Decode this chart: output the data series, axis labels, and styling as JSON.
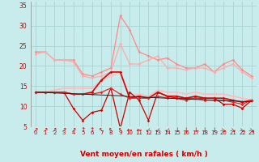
{
  "xlabel": "Vent moyen/en rafales ( km/h )",
  "bg_color": "#c8ecec",
  "grid_color": "#a8d4d4",
  "x": [
    0,
    1,
    2,
    3,
    4,
    5,
    6,
    7,
    8,
    9,
    10,
    11,
    12,
    13,
    14,
    15,
    16,
    17,
    18,
    19,
    20,
    21,
    22,
    23
  ],
  "series": [
    {
      "name": "light_pink_upper",
      "color": "#ff8888",
      "lw": 0.9,
      "marker": "D",
      "ms": 1.8,
      "y": [
        23.5,
        23.5,
        21.5,
        21.5,
        21.5,
        18.0,
        17.5,
        18.5,
        19.5,
        32.5,
        29.0,
        23.5,
        22.5,
        21.5,
        22.0,
        20.5,
        19.5,
        19.5,
        20.5,
        18.5,
        20.5,
        21.5,
        19.0,
        17.5
      ]
    },
    {
      "name": "light_pink_mid",
      "color": "#ffaaaa",
      "lw": 0.9,
      "marker": "D",
      "ms": 1.8,
      "y": [
        23.0,
        23.5,
        21.5,
        21.5,
        21.0,
        17.5,
        17.0,
        17.5,
        18.5,
        25.5,
        20.5,
        20.5,
        21.5,
        22.5,
        19.5,
        19.5,
        19.0,
        19.5,
        19.5,
        18.5,
        19.5,
        20.5,
        18.5,
        17.0
      ]
    },
    {
      "name": "light_pink_low",
      "color": "#ffbbbb",
      "lw": 1.2,
      "marker": "D",
      "ms": 1.8,
      "y": [
        13.5,
        13.5,
        14.0,
        14.5,
        14.5,
        14.5,
        14.5,
        16.5,
        17.5,
        18.5,
        12.5,
        13.0,
        12.5,
        14.0,
        13.5,
        13.5,
        13.0,
        13.5,
        13.0,
        13.0,
        13.0,
        12.5,
        12.0,
        11.5
      ]
    },
    {
      "name": "dark_red_upper",
      "color": "#cc0000",
      "lw": 0.9,
      "marker": "D",
      "ms": 1.8,
      "y": [
        13.5,
        13.5,
        13.5,
        13.5,
        9.5,
        6.5,
        8.5,
        9.0,
        14.5,
        4.5,
        13.5,
        11.5,
        6.5,
        13.5,
        12.5,
        12.0,
        12.0,
        12.0,
        12.0,
        12.0,
        10.5,
        10.5,
        9.5,
        11.5
      ]
    },
    {
      "name": "dark_red_mid",
      "color": "#dd0000",
      "lw": 1.2,
      "marker": "D",
      "ms": 1.8,
      "y": [
        13.5,
        13.5,
        13.5,
        13.5,
        13.0,
        13.0,
        13.5,
        16.5,
        18.5,
        18.5,
        12.0,
        12.5,
        12.0,
        13.5,
        12.5,
        12.5,
        12.0,
        12.5,
        12.0,
        12.0,
        12.0,
        11.5,
        11.0,
        11.5
      ]
    },
    {
      "name": "dark_red_low",
      "color": "#ee2222",
      "lw": 0.9,
      "marker": "D",
      "ms": 1.8,
      "y": [
        13.5,
        13.5,
        13.5,
        13.5,
        13.0,
        13.0,
        13.0,
        13.5,
        14.5,
        13.0,
        12.0,
        12.0,
        12.0,
        12.5,
        12.0,
        12.0,
        11.5,
        12.0,
        11.5,
        11.5,
        11.5,
        11.0,
        10.5,
        11.5
      ]
    },
    {
      "name": "black_trend",
      "color": "#222222",
      "lw": 0.7,
      "marker": null,
      "ms": 0,
      "y": [
        13.5,
        13.4,
        13.3,
        13.2,
        13.1,
        13.0,
        12.9,
        12.8,
        12.7,
        12.6,
        12.4,
        12.3,
        12.2,
        12.1,
        12.0,
        11.9,
        11.8,
        11.7,
        11.6,
        11.5,
        11.4,
        11.3,
        11.2,
        11.1
      ]
    }
  ],
  "arrow_chars": [
    "↗",
    "↗",
    "↗",
    "↗",
    "↗",
    "↑",
    "↑",
    "↖",
    "↖",
    "↖",
    "←",
    "←",
    "↙",
    "↙",
    "↙",
    "↓",
    "↓",
    "↓",
    "↓",
    "↓",
    "↘",
    "↘",
    "↘",
    "↘"
  ],
  "ylim": [
    5,
    36
  ],
  "yticks": [
    5,
    10,
    15,
    20,
    25,
    30,
    35
  ],
  "xlim": [
    -0.5,
    23.5
  ],
  "xticks": [
    0,
    1,
    2,
    3,
    4,
    5,
    6,
    7,
    8,
    9,
    10,
    11,
    12,
    13,
    14,
    15,
    16,
    17,
    18,
    19,
    20,
    21,
    22,
    23
  ],
  "xlabel_fontsize": 6.5,
  "tick_fontsize": 5.0,
  "arrow_fontsize": 5.5
}
